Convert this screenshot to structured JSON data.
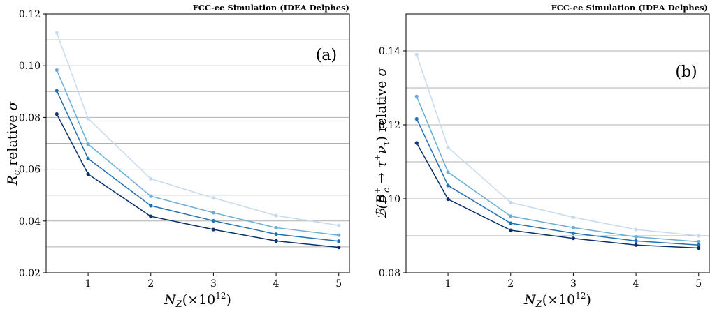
{
  "chart_data": [
    {
      "type": "line",
      "panel_tag": "(a)",
      "header": "FCC-ee Simulation (IDEA Delphes)",
      "xlabel_main": "N",
      "xlabel_sub": "Z",
      "xlabel_rest": "(×10",
      "xlabel_sup": "12",
      "xlabel_end": ")",
      "ylabel_main": "R",
      "ylabel_sub": "c",
      "ylabel_rest": " relative ",
      "ylabel_sigma": "σ",
      "xlim": [
        0.33,
        5.17
      ],
      "ylim": [
        0.02,
        0.12
      ],
      "x_ticks": [
        1,
        2,
        3,
        4,
        5
      ],
      "x_tick_labels": [
        "1",
        "2",
        "3",
        "4",
        "5"
      ],
      "y_ticks": [
        0.02,
        0.04,
        0.06,
        0.08,
        0.1,
        0.12
      ],
      "y_tick_labels": [
        "0.02",
        "0.04",
        "0.06",
        "0.08",
        "0.10",
        "0.12"
      ],
      "grid_lines": [
        0.03,
        0.05,
        0.07,
        0.09,
        0.11
      ],
      "x": [
        0.5,
        1,
        2,
        3,
        4,
        5
      ],
      "series": [
        {
          "values": [
            0.1127,
            0.0796,
            0.0563,
            0.0489,
            0.0421,
            0.0383
          ],
          "color": "#c6dbef"
        },
        {
          "values": [
            0.0983,
            0.0697,
            0.0496,
            0.0432,
            0.0374,
            0.0345
          ],
          "color": "#6baed6"
        },
        {
          "values": [
            0.0903,
            0.0641,
            0.0459,
            0.0401,
            0.0349,
            0.0322
          ],
          "color": "#2171b5"
        },
        {
          "values": [
            0.0813,
            0.0581,
            0.0418,
            0.0367,
            0.0323,
            0.0298
          ],
          "color": "#08306b"
        }
      ]
    },
    {
      "type": "line",
      "panel_tag": "(b)",
      "header": "FCC-ee Simulation (IDEA Delphes)",
      "xlabel_main": "N",
      "xlabel_sub": "Z",
      "xlabel_rest": "(×10",
      "xlabel_sup": "12",
      "xlabel_end": ")",
      "ylabel_main": "ℬ(B",
      "ylabel_sub": "c",
      "ylabel_sup": "+",
      "ylabel_mid": " → τ",
      "ylabel_sup2": "+",
      "ylabel_nu": "ν",
      "ylabel_sub2": "τ",
      "ylabel_rest": ") relative ",
      "ylabel_sigma": "σ",
      "xlim": [
        0.33,
        5.17
      ],
      "ylim": [
        0.08,
        0.15
      ],
      "x_ticks": [
        1,
        2,
        3,
        4,
        5
      ],
      "x_tick_labels": [
        "1",
        "2",
        "3",
        "4",
        "5"
      ],
      "y_ticks": [
        0.08,
        0.1,
        0.12,
        0.14
      ],
      "y_tick_labels": [
        "0.08",
        "0.10",
        "0.12",
        "0.14"
      ],
      "grid_lines": [
        0.09,
        0.11,
        0.13
      ],
      "x": [
        0.5,
        1,
        2,
        3,
        4,
        5
      ],
      "series": [
        {
          "values": [
            0.139,
            0.1139,
            0.099,
            0.095,
            0.0917,
            0.09
          ],
          "color": "#c6dbef"
        },
        {
          "values": [
            0.1277,
            0.1072,
            0.0953,
            0.0922,
            0.0897,
            0.0884
          ],
          "color": "#6baed6"
        },
        {
          "values": [
            0.1216,
            0.1036,
            0.0934,
            0.0907,
            0.0886,
            0.0875
          ],
          "color": "#2171b5"
        },
        {
          "values": [
            0.1151,
            0.0999,
            0.0915,
            0.0893,
            0.0875,
            0.0867
          ],
          "color": "#08306b"
        }
      ]
    }
  ]
}
